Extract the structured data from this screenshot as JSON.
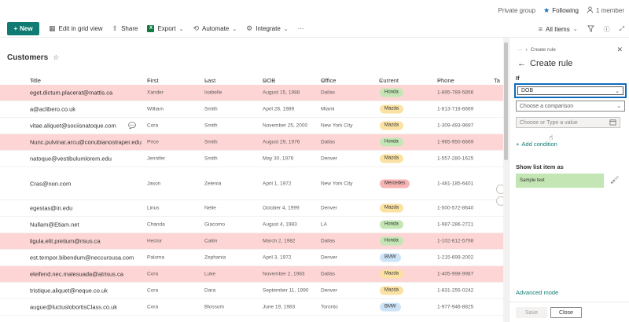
{
  "topbar": {
    "group_type": "Private group",
    "following": "Following",
    "members": "1 member"
  },
  "commands": {
    "new": "New",
    "edit_grid": "Edit in grid view",
    "share": "Share",
    "export": "Export",
    "automate": "Automate",
    "integrate": "Integrate",
    "more": "···",
    "view": "All Items"
  },
  "list": {
    "title": "Customers",
    "columns": [
      "Title",
      "First Name",
      "Last Name",
      "DOB",
      "Office",
      "Current Brand",
      "Phone Number",
      "Ta"
    ],
    "rows": [
      {
        "title": "eget.dictum.placerat@mattis.ca",
        "first": "Xander",
        "last": "Isabelle",
        "dob": "August 15, 1988",
        "office": "Dallas",
        "brand": "Honda",
        "phone": "1-895-789-5856"
      },
      {
        "title": "a@aclibero.co.uk",
        "first": "William",
        "last": "Smith",
        "dob": "April 28, 1989",
        "office": "Miami",
        "brand": "Mazda",
        "phone": "1-813-718-6669"
      },
      {
        "title": "vitae.aliquet@sociisnatoque.com",
        "first": "Cora",
        "last": "Smith",
        "dob": "November 25, 2000",
        "office": "New York City",
        "brand": "Mazda",
        "phone": "1-309-493-9697"
      },
      {
        "title": "Nunc.pulvinar.arcu@conubianostraper.edu",
        "first": "Price",
        "last": "Smith",
        "dob": "August 29, 1976",
        "office": "Dallas",
        "brand": "Honda",
        "phone": "1-965-950-6669"
      },
      {
        "title": "natoque@vestibulumlorem.edu",
        "first": "Jennifer",
        "last": "Smith",
        "dob": "May 30, 1976",
        "office": "Denver",
        "brand": "Mazda",
        "phone": "1-557-280-1625"
      },
      {
        "title": "Cras@non.com",
        "first": "Jason",
        "last": "Zelenia",
        "dob": "April 1, 1972",
        "office": "New York City",
        "brand": "Mercedes",
        "phone": "1-481-185-6401"
      },
      {
        "title": "egestas@in.edu",
        "first": "Linus",
        "last": "Nelle",
        "dob": "October 4, 1999",
        "office": "Denver",
        "brand": "Mazda",
        "phone": "1-500-572-8640"
      },
      {
        "title": "Nullam@Etiam.net",
        "first": "Chanda",
        "last": "Giacomo",
        "dob": "August 4, 1983",
        "office": "LA",
        "brand": "Honda",
        "phone": "1-987-286-2721"
      },
      {
        "title": "ligula.elit.pretium@risus.ca",
        "first": "Hector",
        "last": "Cailin",
        "dob": "March 2, 1982",
        "office": "Dallas",
        "brand": "Honda",
        "phone": "1-102-812-5798"
      },
      {
        "title": "est.tempor.bibendum@neccursusa.com",
        "first": "Paloma",
        "last": "Zephania",
        "dob": "April 3, 1972",
        "office": "Denver",
        "brand": "BMW",
        "phone": "1-215-699-2002"
      },
      {
        "title": "eleifend.nec.malesuada@atrisus.ca",
        "first": "Cora",
        "last": "Luke",
        "dob": "November 2, 1983",
        "office": "Dallas",
        "brand": "Mazda",
        "phone": "1-405-998-9987"
      },
      {
        "title": "tristique.aliquet@neque.co.uk",
        "first": "Cora",
        "last": "Dara",
        "dob": "September 11, 1990",
        "office": "Denver",
        "brand": "Mazda",
        "phone": "1-831-255-0242"
      },
      {
        "title": "augue@luctuslobortisClass.co.uk",
        "first": "Cora",
        "last": "Blossom",
        "dob": "June 19, 1983",
        "office": "Toronto",
        "brand": "BMW",
        "phone": "1-977-946-8825"
      }
    ]
  },
  "panel": {
    "breadcrumb_more": "···",
    "breadcrumb": "Create rule",
    "title": "Create rule",
    "if_label": "If",
    "field_value": "DOB",
    "comparison_placeholder": "Choose a comparison",
    "value_placeholder": "Choose or Type a value",
    "add_condition": "Add condition",
    "show_as": "Show list item as",
    "sample_text": "Sample text",
    "advanced_mode": "Advanced mode",
    "save": "Save",
    "close": "Close"
  }
}
